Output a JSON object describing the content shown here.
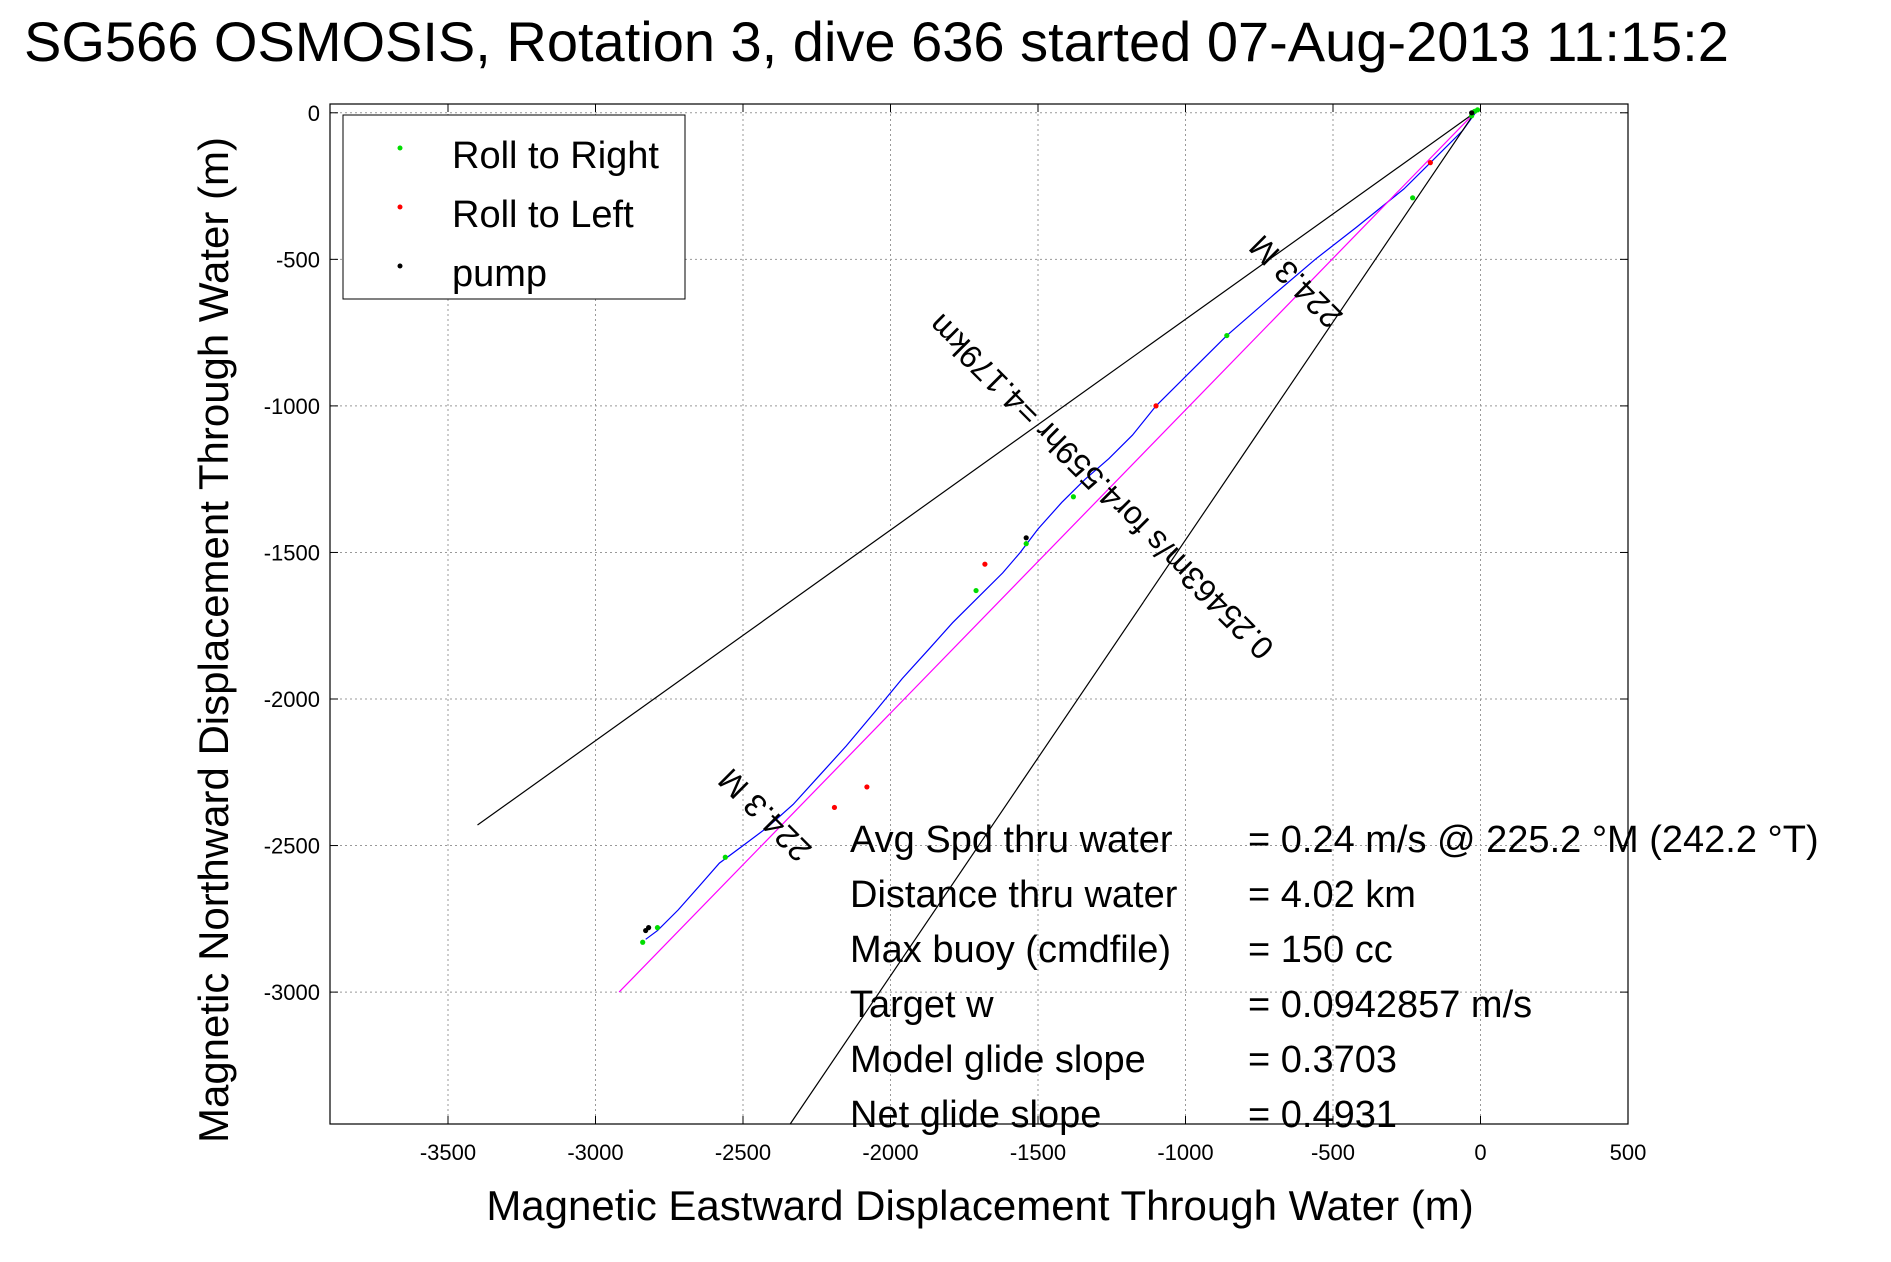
{
  "title": "SG566 OSMOSIS, Rotation 3, dive 636 started 07-Aug-2013 11:15:2",
  "chart_data": {
    "type": "line",
    "xlabel": "Magnetic Eastward Displacement Through Water (m)",
    "ylabel": "Magnetic Northward Displacement Through Water (m)",
    "xlim": [
      -3900,
      500
    ],
    "ylim": [
      -3450,
      30
    ],
    "xticks": [
      -3500,
      -3000,
      -2500,
      -2000,
      -1500,
      -1000,
      -500,
      0,
      500
    ],
    "yticks": [
      0,
      -500,
      -1000,
      -1500,
      -2000,
      -2500,
      -3000
    ],
    "grid": true,
    "legend_position": "top-left",
    "legend": [
      {
        "label": "Roll to Right",
        "color": "#00dd00"
      },
      {
        "label": "Roll to Left",
        "color": "#ff0000"
      },
      {
        "label": "pump",
        "color": "#000000"
      }
    ],
    "series": [
      {
        "name": "Roll to Right",
        "color": "#00dd00",
        "points": [
          [
            -20,
            5
          ],
          [
            -10,
            10
          ],
          [
            -30,
            -10
          ],
          [
            -230,
            -290
          ],
          [
            -860,
            -760
          ],
          [
            -1380,
            -1310
          ],
          [
            -1540,
            -1470
          ],
          [
            -1710,
            -1630
          ],
          [
            -2560,
            -2540
          ],
          [
            -2790,
            -2780
          ],
          [
            -2840,
            -2830
          ]
        ]
      },
      {
        "name": "Roll to Left",
        "color": "#ff0000",
        "points": [
          [
            -170,
            -170
          ],
          [
            -1100,
            -1000
          ],
          [
            -1680,
            -1540
          ],
          [
            -2080,
            -2300
          ],
          [
            -2190,
            -2370
          ]
        ]
      },
      {
        "name": "pump",
        "color": "#000000",
        "points": [
          [
            -30,
            0
          ],
          [
            -1540,
            -1450
          ],
          [
            -2830,
            -2790
          ],
          [
            -2820,
            -2780
          ]
        ]
      },
      {
        "name": "",
        "color": "#0000ff",
        "points": [
          [
            -10,
            10
          ],
          [
            -60,
            -60
          ],
          [
            -150,
            -150
          ],
          [
            -260,
            -260
          ],
          [
            -420,
            -390
          ],
          [
            -560,
            -500
          ],
          [
            -700,
            -620
          ],
          [
            -860,
            -760
          ],
          [
            -1000,
            -900
          ],
          [
            -1100,
            -1000
          ],
          [
            -1180,
            -1100
          ],
          [
            -1260,
            -1180
          ],
          [
            -1340,
            -1250
          ],
          [
            -1420,
            -1330
          ],
          [
            -1500,
            -1420
          ],
          [
            -1560,
            -1500
          ],
          [
            -1620,
            -1570
          ],
          [
            -1700,
            -1650
          ],
          [
            -1790,
            -1740
          ],
          [
            -1870,
            -1830
          ],
          [
            -1960,
            -1930
          ],
          [
            -2050,
            -2040
          ],
          [
            -2150,
            -2160
          ],
          [
            -2240,
            -2260
          ],
          [
            -2330,
            -2360
          ],
          [
            -2420,
            -2440
          ],
          [
            -2500,
            -2500
          ],
          [
            -2580,
            -2560
          ],
          [
            -2650,
            -2640
          ],
          [
            -2720,
            -2720
          ],
          [
            -2790,
            -2790
          ],
          [
            -2830,
            -2820
          ]
        ]
      },
      {
        "name": "",
        "color": "#ff00ff",
        "points": [
          [
            -20,
            0
          ],
          [
            -2920,
            -3000
          ]
        ]
      },
      {
        "name": "",
        "color": "#000000",
        "points": [
          [
            -20,
            0
          ],
          [
            -3400,
            -2430
          ]
        ]
      },
      {
        "name": "",
        "color": "#000000",
        "points": [
          [
            -20,
            0
          ],
          [
            -2340,
            -3450
          ]
        ]
      }
    ],
    "annotations": [
      {
        "text": "224.3 M",
        "x": -600,
        "y": -550,
        "rotate": -135
      },
      {
        "text": "0.25463m/s for4.559hr =4.179km",
        "x": -1260,
        "y": -1250,
        "rotate": -135
      },
      {
        "text": "224.3 M",
        "x": -2400,
        "y": -2370,
        "rotate": -135
      }
    ],
    "stats": [
      {
        "label": "Avg Spd thru water",
        "value": "=  0.24 m/s @ 225.2 °M (242.2 °T)"
      },
      {
        "label": "Distance thru water",
        "value": "=  4.02 km"
      },
      {
        "label": "Max buoy (cmdfile)",
        "value": "= 150 cc"
      },
      {
        "label": "Target w",
        "value": "= 0.0942857 m/s"
      },
      {
        "label": "Model glide slope",
        "value": "= 0.3703"
      },
      {
        "label": "Net glide slope",
        "value": "= 0.4931"
      }
    ]
  }
}
